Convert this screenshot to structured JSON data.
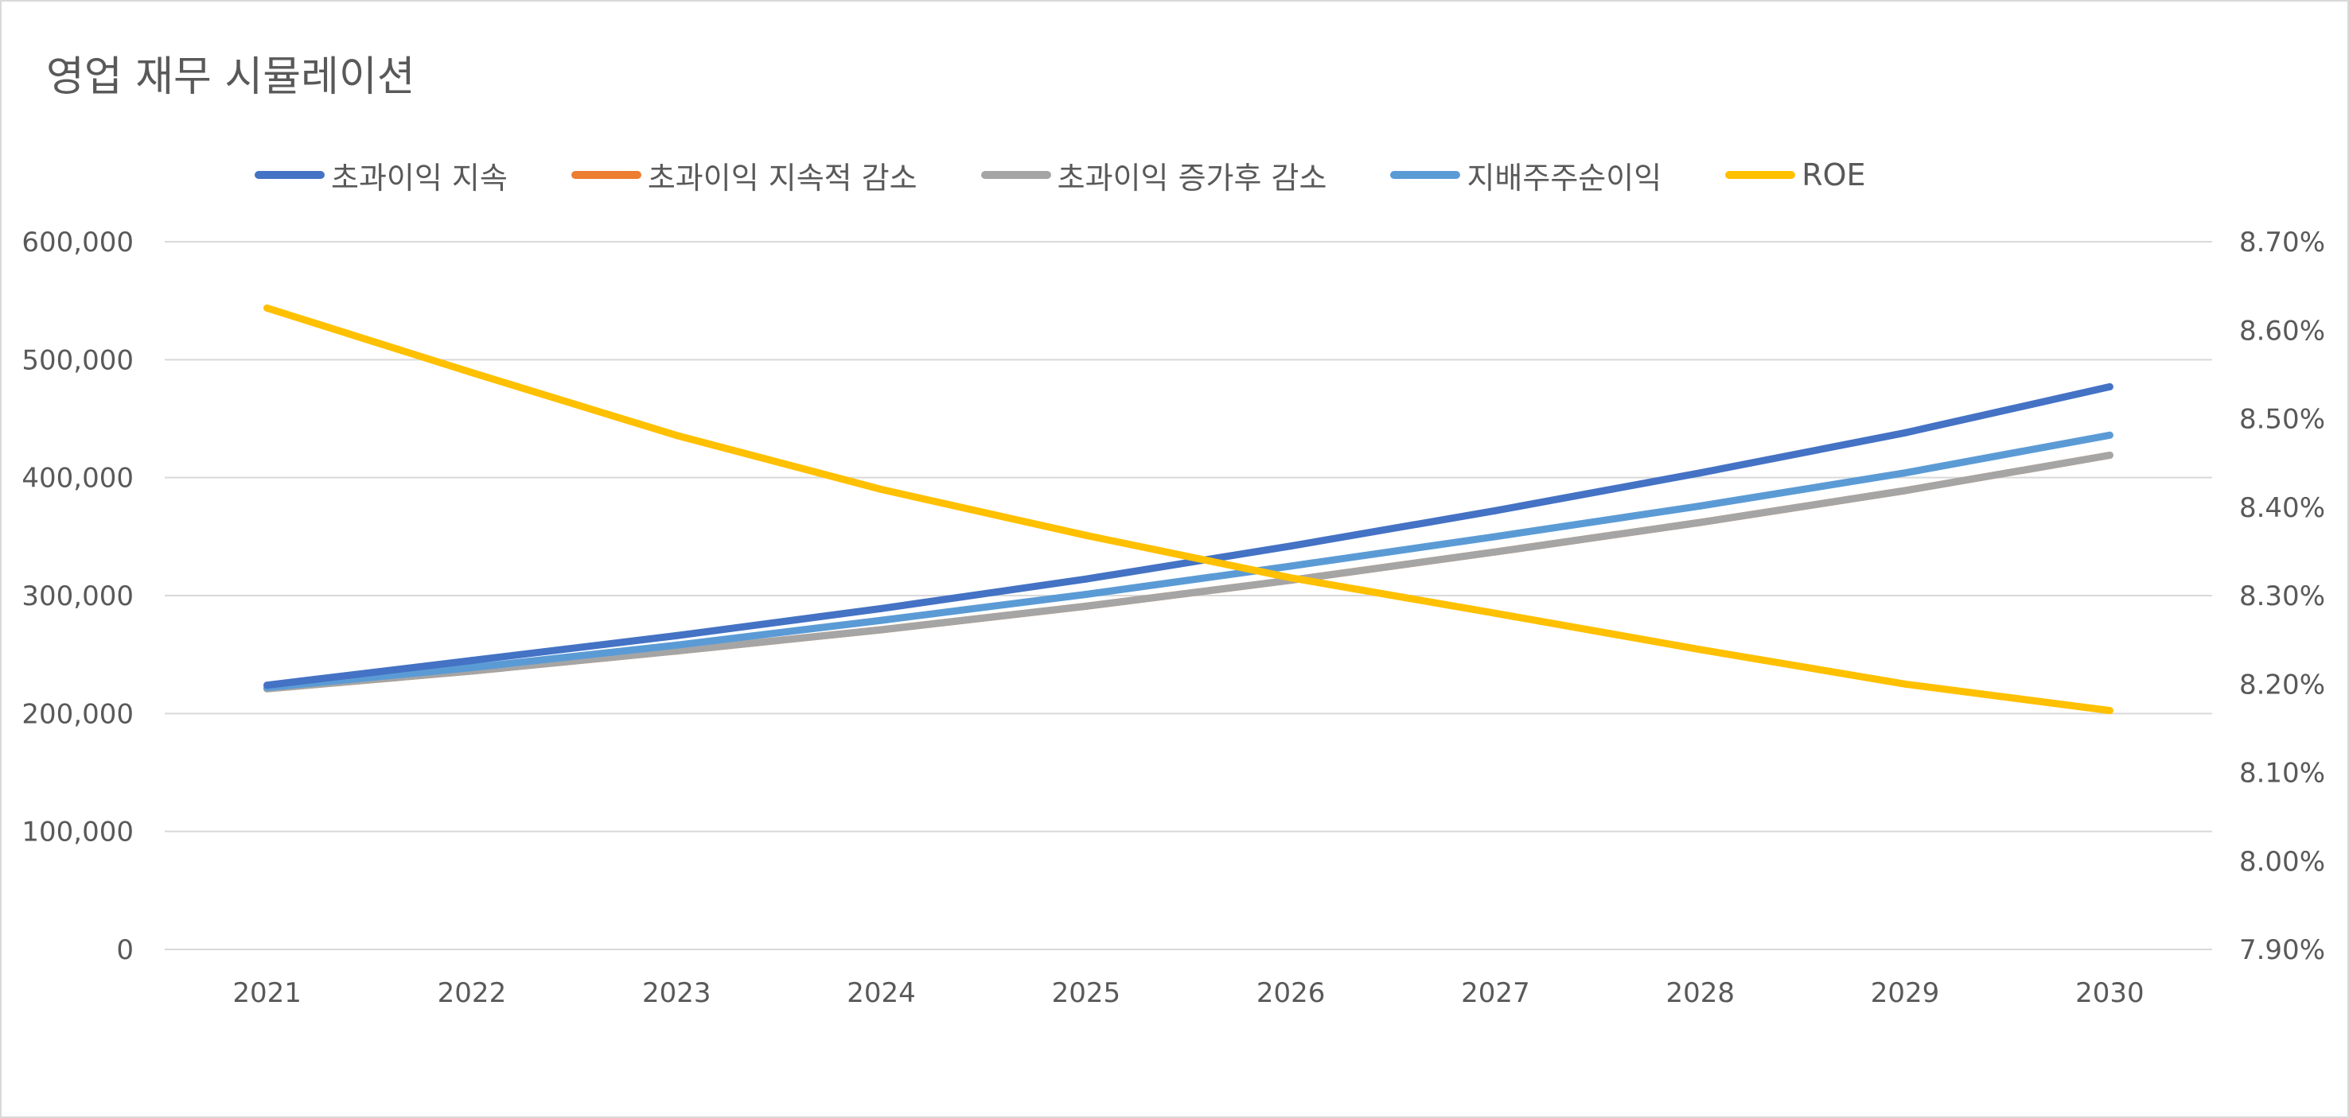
{
  "chart_data": {
    "type": "line",
    "title": "영업 재무 시뮬레이션",
    "xlabel": "",
    "ylabel": "",
    "categories": [
      "2021",
      "2022",
      "2023",
      "2024",
      "2025",
      "2026",
      "2027",
      "2028",
      "2029",
      "2030"
    ],
    "ylim": [
      0,
      600000
    ],
    "y_ticks": [
      0,
      100000,
      200000,
      300000,
      400000,
      500000,
      600000
    ],
    "y_tick_labels": [
      "0",
      "100,000",
      "200,000",
      "300,000",
      "400,000",
      "500,000",
      "600,000"
    ],
    "y2lim": [
      7.9,
      8.7
    ],
    "y2_ticks": [
      7.9,
      8.0,
      8.1,
      8.2,
      8.3,
      8.4,
      8.5,
      8.6,
      8.7
    ],
    "y2_tick_labels": [
      "7.90%",
      "8.00%",
      "8.10%",
      "8.20%",
      "8.30%",
      "8.40%",
      "8.50%",
      "8.60%",
      "8.70%"
    ],
    "grid": true,
    "legend_position": "top",
    "series": [
      {
        "name": "초과이익 지속",
        "axis": "left",
        "color": "#4472c4",
        "values": [
          224000,
          245000,
          266000,
          289000,
          314000,
          342000,
          372000,
          404000,
          438000,
          477000
        ]
      },
      {
        "name": "초과이익 지속적 감소",
        "axis": "left",
        "color": "#ed7d31",
        "values": [
          221000,
          236000,
          253000,
          271000,
          291000,
          313000,
          337000,
          362000,
          389000,
          419000
        ]
      },
      {
        "name": "초과이익 증가후 감소",
        "axis": "left",
        "color": "#a5a5a5",
        "values": [
          221000,
          236000,
          253000,
          271000,
          291000,
          313000,
          337000,
          362000,
          389000,
          419000
        ]
      },
      {
        "name": "지배주주순이익",
        "axis": "left",
        "color": "#5b9bd5",
        "values": [
          222000,
          239000,
          258000,
          279000,
          301000,
          325000,
          350000,
          376000,
          404000,
          436000
        ]
      },
      {
        "name": "ROE",
        "axis": "right",
        "color": "#ffc000",
        "values": [
          8.625,
          8.552,
          8.481,
          8.42,
          8.368,
          8.32,
          8.28,
          8.239,
          8.2,
          8.17
        ]
      }
    ]
  }
}
